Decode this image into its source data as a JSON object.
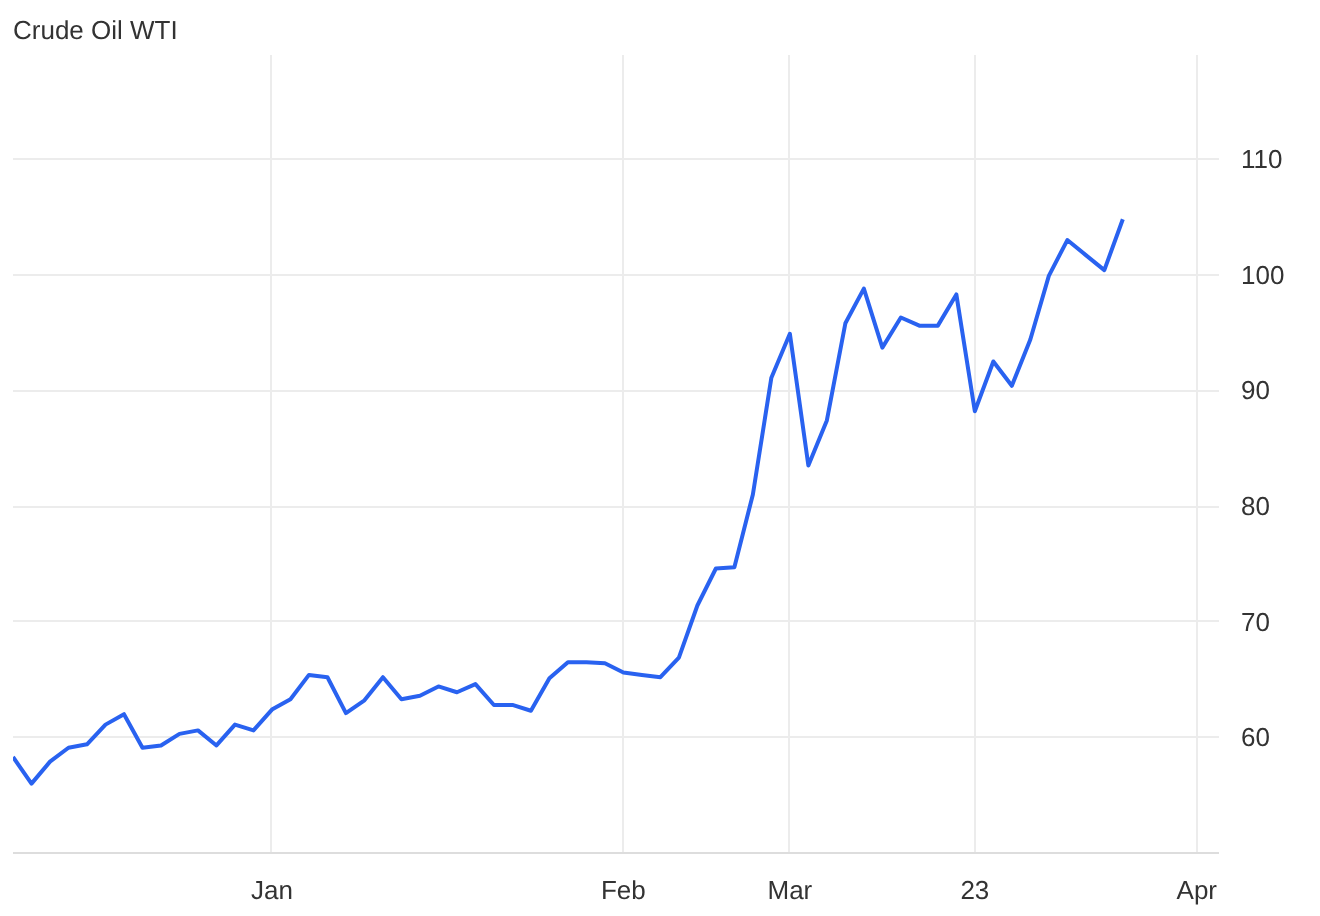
{
  "chart_data": {
    "type": "line",
    "title": "Crude Oil WTI",
    "categories": [
      null,
      null,
      null,
      null,
      null,
      null,
      null,
      null,
      null,
      null,
      null,
      null,
      null,
      null,
      "Jan",
      null,
      null,
      null,
      null,
      null,
      null,
      null,
      null,
      null,
      null,
      null,
      null,
      null,
      null,
      null,
      null,
      null,
      null,
      "Feb",
      null,
      null,
      null,
      null,
      null,
      null,
      null,
      null,
      "Mar",
      null,
      null,
      null,
      null,
      null,
      null,
      null,
      null,
      null,
      "23",
      null,
      null,
      null,
      null,
      null,
      null,
      null,
      null,
      null,
      null,
      null,
      "Apr"
    ],
    "series": [
      {
        "color": "#2962f0",
        "values": [
          58.3,
          56.0,
          57.9,
          59.1,
          59.4,
          61.1,
          62.0,
          59.1,
          59.3,
          60.3,
          60.6,
          59.3,
          61.1,
          60.6,
          62.4,
          63.3,
          65.4,
          65.2,
          62.1,
          63.2,
          65.2,
          63.3,
          63.6,
          64.4,
          63.9,
          64.6,
          62.8,
          62.8,
          62.3,
          65.1,
          66.5,
          66.5,
          66.4,
          65.6,
          65.4,
          65.2,
          66.9,
          71.4,
          74.6,
          74.7,
          81.0,
          91.1,
          94.9,
          83.5,
          87.4,
          95.8,
          98.8,
          93.7,
          96.3,
          95.6,
          95.6,
          98.3,
          88.2,
          92.5,
          90.4,
          94.4,
          99.9,
          103.0,
          101.7,
          100.4,
          104.8,
          null,
          null,
          null,
          null
        ]
      }
    ],
    "ylim": [
      50,
      119
    ],
    "yticks": [
      60,
      70,
      80,
      90,
      100,
      110
    ],
    "grid": true,
    "marker": "none",
    "line_style": "solid"
  }
}
